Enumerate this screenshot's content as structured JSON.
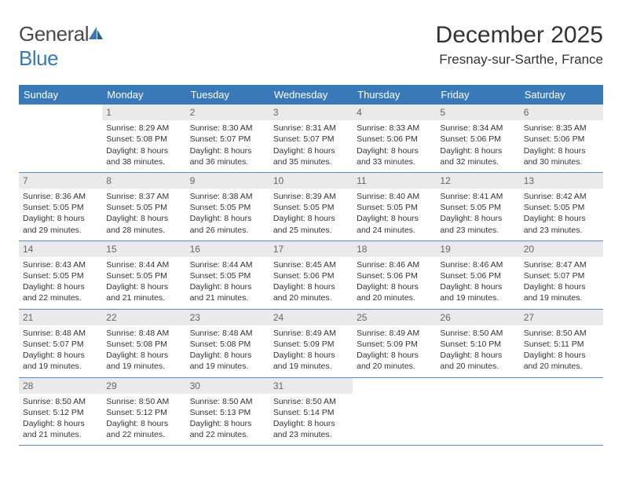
{
  "logo": {
    "word1": "General",
    "word2": "Blue"
  },
  "title": "December 2025",
  "location": "Fresnay-sur-Sarthe, France",
  "colors": {
    "header_bg": "#3a79b7",
    "header_fg": "#ffffff",
    "daynum_bg": "#eaeaea",
    "daynum_fg": "#666666",
    "text": "#333333",
    "rule": "#5a8cc4"
  },
  "dayHeaders": [
    "Sunday",
    "Monday",
    "Tuesday",
    "Wednesday",
    "Thursday",
    "Friday",
    "Saturday"
  ],
  "weeks": [
    [
      null,
      {
        "n": "1",
        "sr": "8:29 AM",
        "ss": "5:08 PM",
        "dl": "8 hours and 38 minutes."
      },
      {
        "n": "2",
        "sr": "8:30 AM",
        "ss": "5:07 PM",
        "dl": "8 hours and 36 minutes."
      },
      {
        "n": "3",
        "sr": "8:31 AM",
        "ss": "5:07 PM",
        "dl": "8 hours and 35 minutes."
      },
      {
        "n": "4",
        "sr": "8:33 AM",
        "ss": "5:06 PM",
        "dl": "8 hours and 33 minutes."
      },
      {
        "n": "5",
        "sr": "8:34 AM",
        "ss": "5:06 PM",
        "dl": "8 hours and 32 minutes."
      },
      {
        "n": "6",
        "sr": "8:35 AM",
        "ss": "5:06 PM",
        "dl": "8 hours and 30 minutes."
      }
    ],
    [
      {
        "n": "7",
        "sr": "8:36 AM",
        "ss": "5:05 PM",
        "dl": "8 hours and 29 minutes."
      },
      {
        "n": "8",
        "sr": "8:37 AM",
        "ss": "5:05 PM",
        "dl": "8 hours and 28 minutes."
      },
      {
        "n": "9",
        "sr": "8:38 AM",
        "ss": "5:05 PM",
        "dl": "8 hours and 26 minutes."
      },
      {
        "n": "10",
        "sr": "8:39 AM",
        "ss": "5:05 PM",
        "dl": "8 hours and 25 minutes."
      },
      {
        "n": "11",
        "sr": "8:40 AM",
        "ss": "5:05 PM",
        "dl": "8 hours and 24 minutes."
      },
      {
        "n": "12",
        "sr": "8:41 AM",
        "ss": "5:05 PM",
        "dl": "8 hours and 23 minutes."
      },
      {
        "n": "13",
        "sr": "8:42 AM",
        "ss": "5:05 PM",
        "dl": "8 hours and 23 minutes."
      }
    ],
    [
      {
        "n": "14",
        "sr": "8:43 AM",
        "ss": "5:05 PM",
        "dl": "8 hours and 22 minutes."
      },
      {
        "n": "15",
        "sr": "8:44 AM",
        "ss": "5:05 PM",
        "dl": "8 hours and 21 minutes."
      },
      {
        "n": "16",
        "sr": "8:44 AM",
        "ss": "5:05 PM",
        "dl": "8 hours and 21 minutes."
      },
      {
        "n": "17",
        "sr": "8:45 AM",
        "ss": "5:06 PM",
        "dl": "8 hours and 20 minutes."
      },
      {
        "n": "18",
        "sr": "8:46 AM",
        "ss": "5:06 PM",
        "dl": "8 hours and 20 minutes."
      },
      {
        "n": "19",
        "sr": "8:46 AM",
        "ss": "5:06 PM",
        "dl": "8 hours and 19 minutes."
      },
      {
        "n": "20",
        "sr": "8:47 AM",
        "ss": "5:07 PM",
        "dl": "8 hours and 19 minutes."
      }
    ],
    [
      {
        "n": "21",
        "sr": "8:48 AM",
        "ss": "5:07 PM",
        "dl": "8 hours and 19 minutes."
      },
      {
        "n": "22",
        "sr": "8:48 AM",
        "ss": "5:08 PM",
        "dl": "8 hours and 19 minutes."
      },
      {
        "n": "23",
        "sr": "8:48 AM",
        "ss": "5:08 PM",
        "dl": "8 hours and 19 minutes."
      },
      {
        "n": "24",
        "sr": "8:49 AM",
        "ss": "5:09 PM",
        "dl": "8 hours and 19 minutes."
      },
      {
        "n": "25",
        "sr": "8:49 AM",
        "ss": "5:09 PM",
        "dl": "8 hours and 20 minutes."
      },
      {
        "n": "26",
        "sr": "8:50 AM",
        "ss": "5:10 PM",
        "dl": "8 hours and 20 minutes."
      },
      {
        "n": "27",
        "sr": "8:50 AM",
        "ss": "5:11 PM",
        "dl": "8 hours and 20 minutes."
      }
    ],
    [
      {
        "n": "28",
        "sr": "8:50 AM",
        "ss": "5:12 PM",
        "dl": "8 hours and 21 minutes."
      },
      {
        "n": "29",
        "sr": "8:50 AM",
        "ss": "5:12 PM",
        "dl": "8 hours and 22 minutes."
      },
      {
        "n": "30",
        "sr": "8:50 AM",
        "ss": "5:13 PM",
        "dl": "8 hours and 22 minutes."
      },
      {
        "n": "31",
        "sr": "8:50 AM",
        "ss": "5:14 PM",
        "dl": "8 hours and 23 minutes."
      },
      null,
      null,
      null
    ]
  ],
  "labels": {
    "sunrise": "Sunrise:",
    "sunset": "Sunset:",
    "daylight": "Daylight:"
  }
}
